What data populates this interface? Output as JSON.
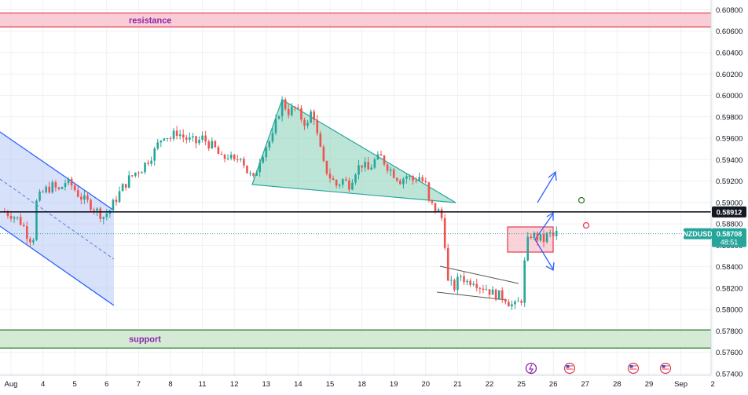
{
  "chart_data": {
    "type": "candlestick",
    "symbol": "NZDUSD",
    "last_price": "0.58708",
    "countdown": "48:51",
    "key_level_label": "0.58912",
    "key_level": 0.58912,
    "ylim": [
      0.574,
      0.6084
    ],
    "y_ticks": [
      "0.60800",
      "0.60600",
      "0.60400",
      "0.60200",
      "0.60000",
      "0.59800",
      "0.59600",
      "0.59400",
      "0.59200",
      "0.59000",
      "0.58800",
      "0.58600",
      "0.58400",
      "0.58200",
      "0.58000",
      "0.57800",
      "0.57600",
      "0.57400"
    ],
    "x_ticks": [
      {
        "label": "Aug",
        "x": 0
      },
      {
        "label": "4",
        "x": 1
      },
      {
        "label": "5",
        "x": 2
      },
      {
        "label": "6",
        "x": 3
      },
      {
        "label": "7",
        "x": 4
      },
      {
        "label": "8",
        "x": 5
      },
      {
        "label": "11",
        "x": 6
      },
      {
        "label": "12",
        "x": 7
      },
      {
        "label": "13",
        "x": 8
      },
      {
        "label": "14",
        "x": 9
      },
      {
        "label": "15",
        "x": 10
      },
      {
        "label": "18",
        "x": 11
      },
      {
        "label": "19",
        "x": 12
      },
      {
        "label": "20",
        "x": 13
      },
      {
        "label": "21",
        "x": 14
      },
      {
        "label": "22",
        "x": 15
      },
      {
        "label": "25",
        "x": 16
      },
      {
        "label": "26",
        "x": 17
      },
      {
        "label": "27",
        "x": 18
      },
      {
        "label": "28",
        "x": 19
      },
      {
        "label": "29",
        "x": 20
      },
      {
        "label": "Sep",
        "x": 21
      },
      {
        "label": "2",
        "x": 22
      }
    ],
    "zones": [
      {
        "label": "resistance",
        "top": 0.6077,
        "bottom": 0.6064,
        "fill": "#f8c8d0",
        "stroke": "#e53950"
      },
      {
        "label": "support",
        "top": 0.5781,
        "bottom": 0.5764,
        "fill": "#cfe8cf",
        "stroke": "#2e7d32"
      }
    ],
    "price_path": [
      [
        -0.3,
        0.5892
      ],
      [
        0.0,
        0.5889
      ],
      [
        0.25,
        0.5884
      ],
      [
        0.45,
        0.5875
      ],
      [
        0.55,
        0.5866
      ],
      [
        0.7,
        0.5868
      ],
      [
        0.8,
        0.59
      ],
      [
        0.95,
        0.5908
      ],
      [
        1.1,
        0.5912
      ],
      [
        1.3,
        0.5915
      ],
      [
        1.5,
        0.5911
      ],
      [
        1.7,
        0.5919
      ],
      [
        1.9,
        0.5916
      ],
      [
        2.1,
        0.5908
      ],
      [
        2.3,
        0.5902
      ],
      [
        2.5,
        0.5898
      ],
      [
        2.7,
        0.5892
      ],
      [
        2.9,
        0.5887
      ],
      [
        3.1,
        0.5893
      ],
      [
        3.3,
        0.5904
      ],
      [
        3.5,
        0.5914
      ],
      [
        3.7,
        0.5922
      ],
      [
        3.9,
        0.5928
      ],
      [
        4.1,
        0.5932
      ],
      [
        4.3,
        0.594
      ],
      [
        4.5,
        0.5948
      ],
      [
        4.65,
        0.5957
      ],
      [
        4.8,
        0.5964
      ],
      [
        5.0,
        0.596
      ],
      [
        5.2,
        0.5966
      ],
      [
        5.4,
        0.5961
      ],
      [
        5.6,
        0.5958
      ],
      [
        5.8,
        0.5956
      ],
      [
        6.0,
        0.596
      ],
      [
        6.2,
        0.5955
      ],
      [
        6.4,
        0.595
      ],
      [
        6.6,
        0.594
      ],
      [
        6.8,
        0.5944
      ],
      [
        7.0,
        0.5937
      ],
      [
        7.2,
        0.5945
      ],
      [
        7.4,
        0.5929
      ],
      [
        7.6,
        0.5921
      ],
      [
        7.8,
        0.5941
      ],
      [
        8.0,
        0.5953
      ],
      [
        8.2,
        0.5961
      ],
      [
        8.35,
        0.598
      ],
      [
        8.5,
        0.5994
      ],
      [
        8.7,
        0.5985
      ],
      [
        8.9,
        0.5988
      ],
      [
        9.1,
        0.5979
      ],
      [
        9.3,
        0.5972
      ],
      [
        9.45,
        0.599
      ],
      [
        9.6,
        0.5962
      ],
      [
        9.8,
        0.5935
      ],
      [
        10.0,
        0.5924
      ],
      [
        10.2,
        0.5916
      ],
      [
        10.4,
        0.5921
      ],
      [
        10.6,
        0.5917
      ],
      [
        10.8,
        0.593
      ],
      [
        11.0,
        0.5936
      ],
      [
        11.2,
        0.593
      ],
      [
        11.4,
        0.5939
      ],
      [
        11.6,
        0.5942
      ],
      [
        11.8,
        0.5934
      ],
      [
        12.0,
        0.5927
      ],
      [
        12.2,
        0.5921
      ],
      [
        12.4,
        0.5925
      ],
      [
        12.6,
        0.5921
      ],
      [
        12.8,
        0.5924
      ],
      [
        13.0,
        0.5916
      ],
      [
        13.1,
        0.59
      ],
      [
        13.3,
        0.5894
      ],
      [
        13.45,
        0.589
      ],
      [
        13.55,
        0.5881
      ],
      [
        13.7,
        0.5825
      ],
      [
        13.9,
        0.5821
      ],
      [
        14.1,
        0.5832
      ],
      [
        14.3,
        0.5826
      ],
      [
        14.5,
        0.5828
      ],
      [
        14.7,
        0.5822
      ],
      [
        14.9,
        0.582
      ],
      [
        15.1,
        0.5815
      ],
      [
        15.3,
        0.5813
      ],
      [
        15.5,
        0.5811
      ],
      [
        15.65,
        0.5805
      ],
      [
        15.8,
        0.5803
      ],
      [
        16.0,
        0.581
      ],
      [
        16.15,
        0.586
      ],
      [
        16.3,
        0.587
      ],
      [
        16.5,
        0.5867
      ],
      [
        16.7,
        0.5865
      ],
      [
        16.85,
        0.5871
      ],
      [
        17.0,
        0.5868
      ],
      [
        17.1,
        0.5871
      ]
    ],
    "series_color": "#26a69a",
    "down_color": "#ef5350"
  }
}
